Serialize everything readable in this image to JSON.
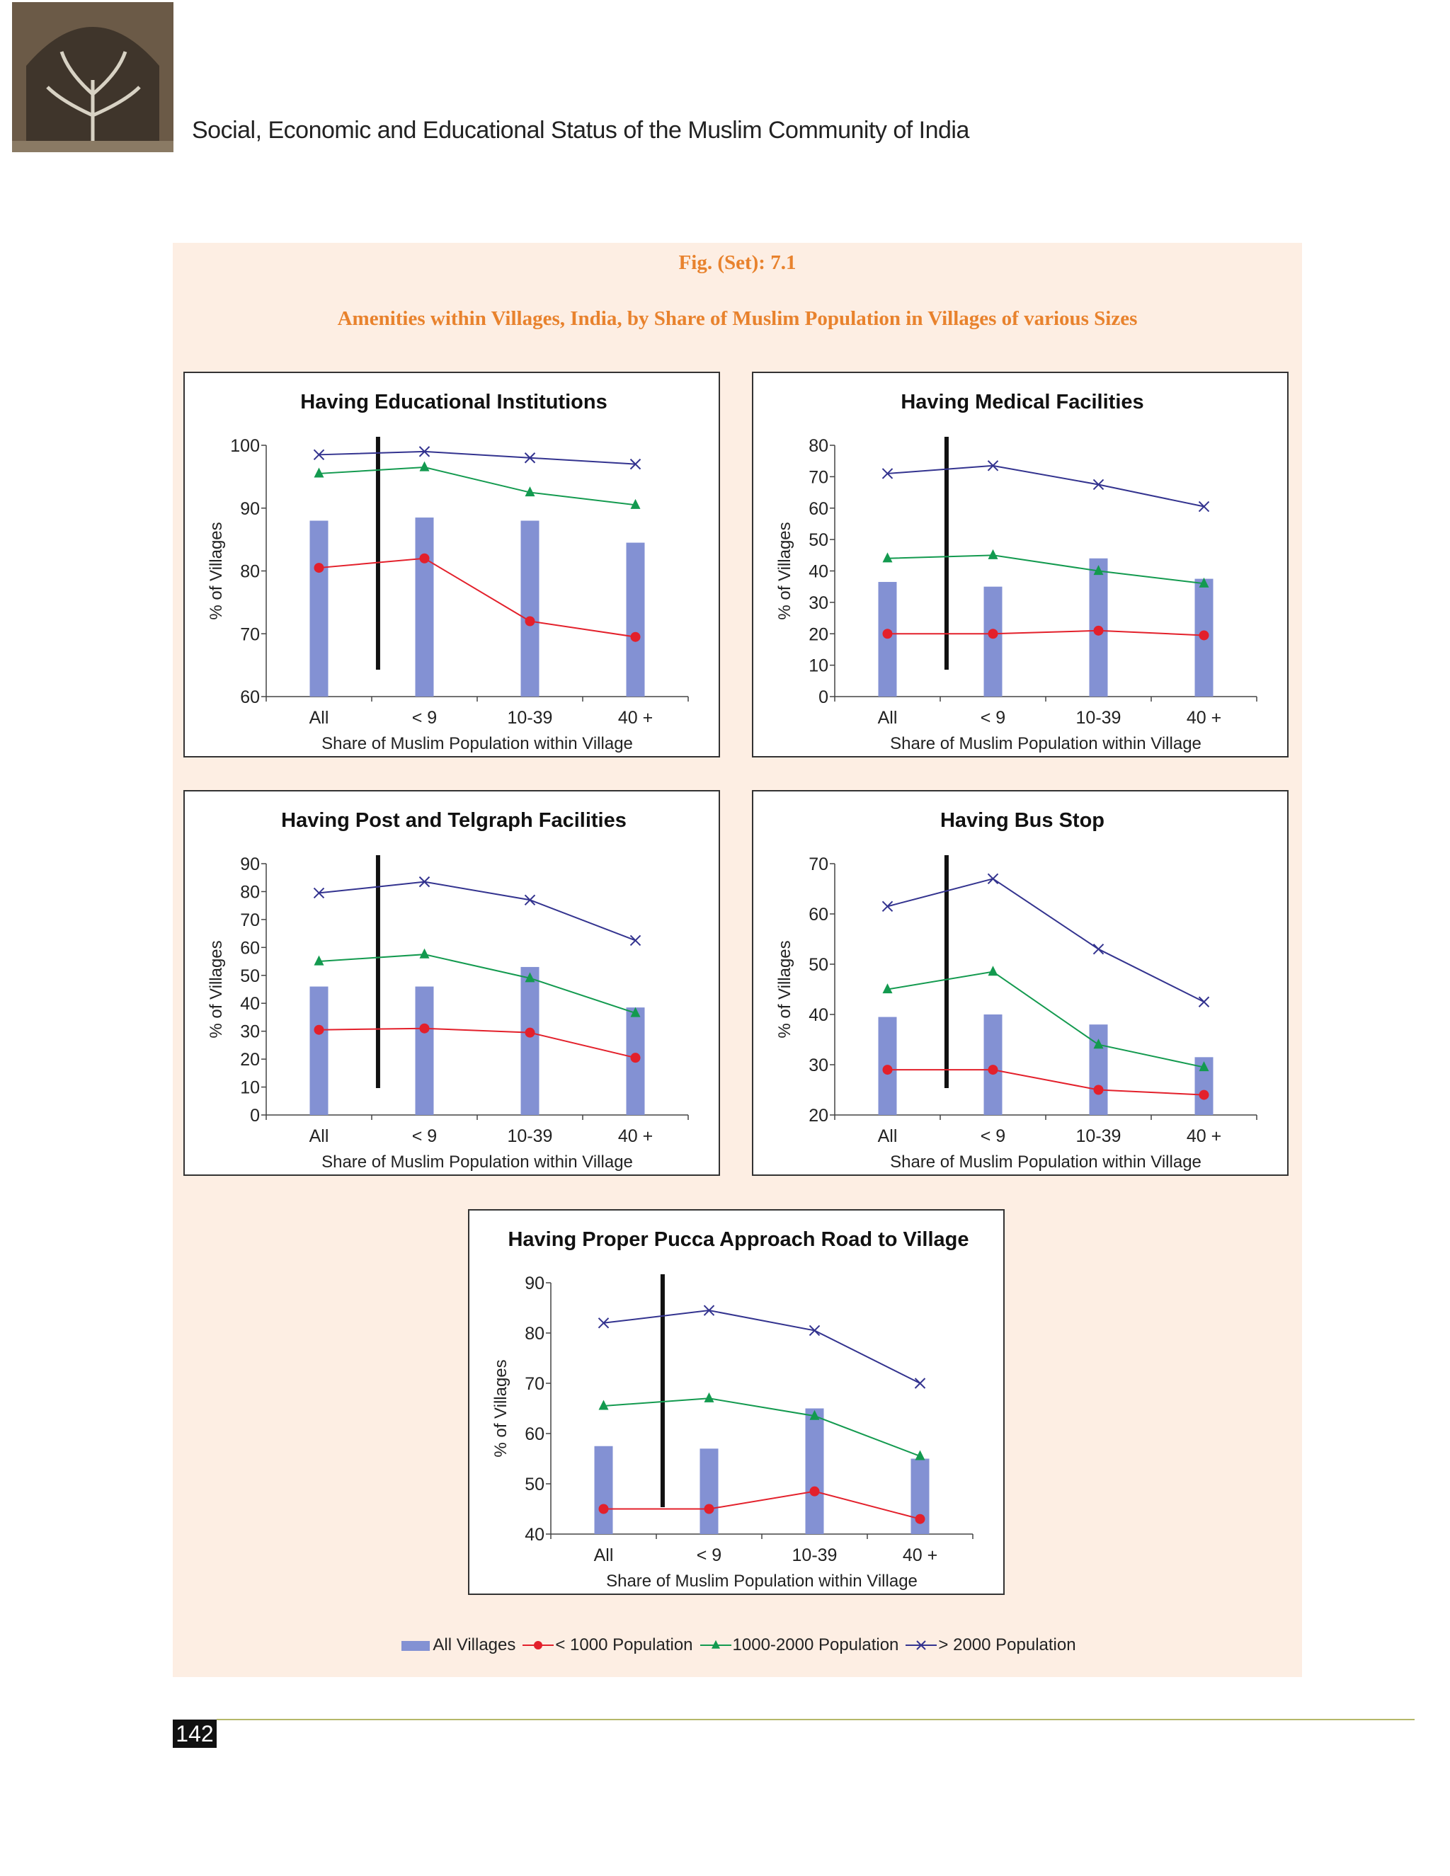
{
  "header": {
    "title": "Social, Economic and Educational Status of the Muslim Community of India"
  },
  "figure": {
    "label": "Fig. (Set): 7.1",
    "title": "Amenities within Villages, India, by Share of Muslim Population in Villages of various Sizes"
  },
  "legend": {
    "series": [
      {
        "name": "All Villages",
        "color": "#8391d3",
        "marker": "bar"
      },
      {
        "name": "< 1000 Population",
        "color": "#e3202b",
        "marker": "circle"
      },
      {
        "name": "1000-2000 Population",
        "color": "#139a4f",
        "marker": "triangle"
      },
      {
        "name": "> 2000 Population",
        "color": "#33338f",
        "marker": "x"
      }
    ]
  },
  "chart_data": [
    {
      "type": "combo",
      "title": "Having Educational Institutions",
      "x_label": "Share of Muslim Population within Village",
      "y_label": "% of Villages",
      "categories": [
        "All",
        "<  9",
        "10-39",
        "40 +"
      ],
      "ylim": [
        60,
        100
      ],
      "yticks": [
        60,
        70,
        80,
        90,
        100
      ],
      "series": [
        {
          "values": [
            88,
            88.5,
            88,
            84.5
          ]
        },
        {
          "values": [
            80.5,
            82,
            72,
            69.5
          ]
        },
        {
          "values": [
            95.5,
            96.5,
            92.5,
            90.5
          ]
        },
        {
          "values": [
            98.5,
            99,
            98,
            97
          ]
        }
      ]
    },
    {
      "type": "combo",
      "title": "Having Medical Facilities",
      "x_label": "Share of Muslim Population within Village",
      "y_label": "% of Villages",
      "categories": [
        "All",
        "<  9",
        "10-39",
        "40 +"
      ],
      "ylim": [
        0,
        80
      ],
      "yticks": [
        0,
        10,
        20,
        30,
        40,
        50,
        60,
        70,
        80
      ],
      "series": [
        {
          "values": [
            36.5,
            35,
            44,
            37.5
          ]
        },
        {
          "values": [
            20,
            20,
            21,
            19.5
          ]
        },
        {
          "values": [
            44,
            45,
            40,
            36
          ]
        },
        {
          "values": [
            71,
            73.5,
            67.5,
            60.5
          ]
        }
      ]
    },
    {
      "type": "combo",
      "title": "Having Post and Telgraph Facilities",
      "x_label": "Share of Muslim Population within Village",
      "y_label": "% of Villages",
      "categories": [
        "All",
        "<  9",
        "10-39",
        "40 +"
      ],
      "ylim": [
        0,
        90
      ],
      "yticks": [
        0,
        10,
        20,
        30,
        40,
        50,
        60,
        70,
        80,
        90
      ],
      "series": [
        {
          "values": [
            46,
            46,
            53,
            38.5
          ]
        },
        {
          "values": [
            30.5,
            31,
            29.5,
            20.5
          ]
        },
        {
          "values": [
            55,
            57.5,
            49,
            36.5
          ]
        },
        {
          "values": [
            79.5,
            83.5,
            77,
            62.5
          ]
        }
      ]
    },
    {
      "type": "combo",
      "title": "Having Bus Stop",
      "x_label": "Share of Muslim Population within Village",
      "y_label": "% of Villages",
      "categories": [
        "All",
        "<  9",
        "10-39",
        "40 +"
      ],
      "ylim": [
        20,
        70
      ],
      "yticks": [
        20,
        30,
        40,
        50,
        60,
        70
      ],
      "series": [
        {
          "values": [
            39.5,
            40,
            38,
            31.5
          ]
        },
        {
          "values": [
            29,
            29,
            25,
            24
          ]
        },
        {
          "values": [
            45,
            48.5,
            34,
            29.5
          ]
        },
        {
          "values": [
            61.5,
            67,
            53,
            42.5
          ]
        }
      ]
    },
    {
      "type": "combo",
      "title": "Having Proper Pucca Approach Road to Village",
      "x_label": "Share of Muslim Population within Village",
      "y_label": "% of Villages",
      "categories": [
        "All",
        "<  9",
        "10-39",
        "40 +"
      ],
      "ylim": [
        40,
        90
      ],
      "yticks": [
        40,
        50,
        60,
        70,
        80,
        90
      ],
      "series": [
        {
          "values": [
            57.5,
            57,
            65,
            55
          ]
        },
        {
          "values": [
            45,
            45,
            48.5,
            43
          ]
        },
        {
          "values": [
            65.5,
            67,
            63.5,
            55.5
          ]
        },
        {
          "values": [
            82,
            84.5,
            80.5,
            70
          ]
        }
      ]
    }
  ],
  "page_number": "142"
}
